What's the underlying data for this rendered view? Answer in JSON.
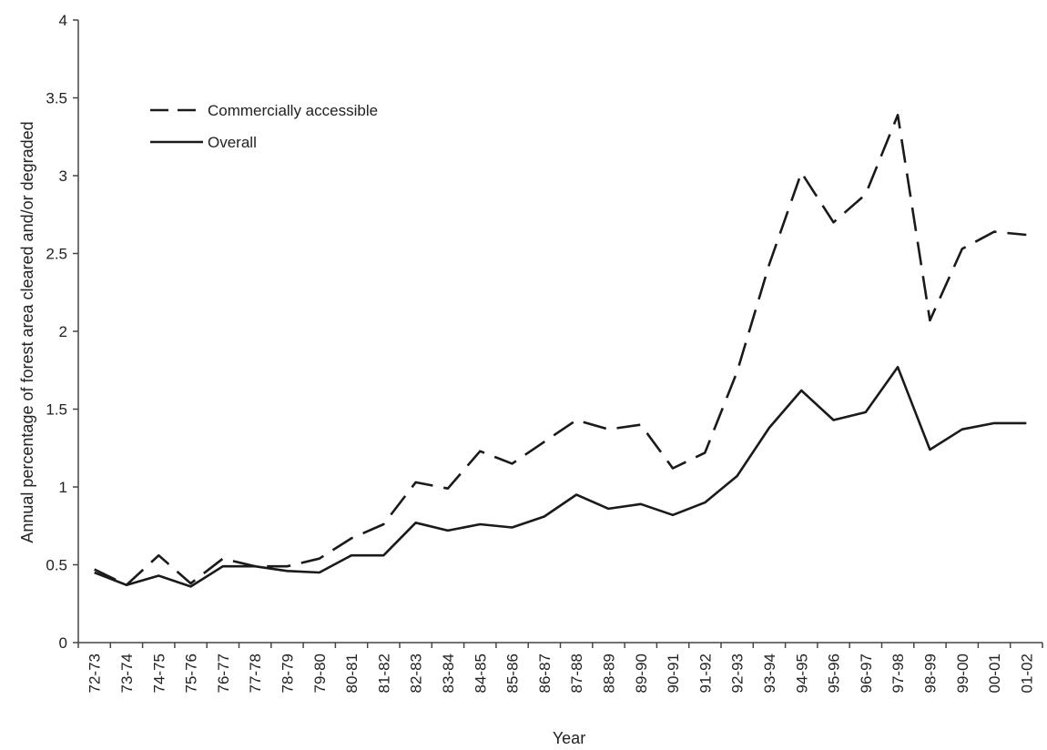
{
  "chart_data": {
    "type": "line",
    "xlabel": "Year",
    "ylabel": "Annual percentage of forest area cleared and/or degraded",
    "ylim": [
      0,
      4
    ],
    "yticks": [
      "0",
      "0.5",
      "1",
      "1.5",
      "2",
      "2.5",
      "3",
      "3.5",
      "4"
    ],
    "grid": false,
    "legend_position": "top-left",
    "categories": [
      "72-73",
      "73-74",
      "74-75",
      "75-76",
      "76-77",
      "77-78",
      "78-79",
      "79-80",
      "80-81",
      "81-82",
      "82-83",
      "83-84",
      "84-85",
      "85-86",
      "86-87",
      "87-88",
      "88-89",
      "89-90",
      "90-91",
      "91-92",
      "92-93",
      "93-94",
      "94-95",
      "95-96",
      "96-97",
      "97-98",
      "98-99",
      "99-00",
      "00-01",
      "01-02"
    ],
    "series": [
      {
        "name": "Commercially accessible",
        "style": "dashed",
        "color": "#1a1a1a",
        "values": [
          0.47,
          0.37,
          0.56,
          0.38,
          0.54,
          0.49,
          0.49,
          0.54,
          0.67,
          0.76,
          1.03,
          0.99,
          1.23,
          1.15,
          1.29,
          1.43,
          1.37,
          1.4,
          1.12,
          1.22,
          1.74,
          2.43,
          3.02,
          2.7,
          2.88,
          3.39,
          2.07,
          2.53,
          2.64,
          2.62
        ]
      },
      {
        "name": "Overall",
        "style": "solid",
        "color": "#1a1a1a",
        "values": [
          0.45,
          0.37,
          0.43,
          0.36,
          0.49,
          0.49,
          0.46,
          0.45,
          0.56,
          0.56,
          0.77,
          0.72,
          0.76,
          0.74,
          0.81,
          0.95,
          0.86,
          0.89,
          0.82,
          0.9,
          1.07,
          1.38,
          1.62,
          1.43,
          1.48,
          1.77,
          1.24,
          1.37,
          1.41,
          1.41
        ]
      }
    ]
  }
}
